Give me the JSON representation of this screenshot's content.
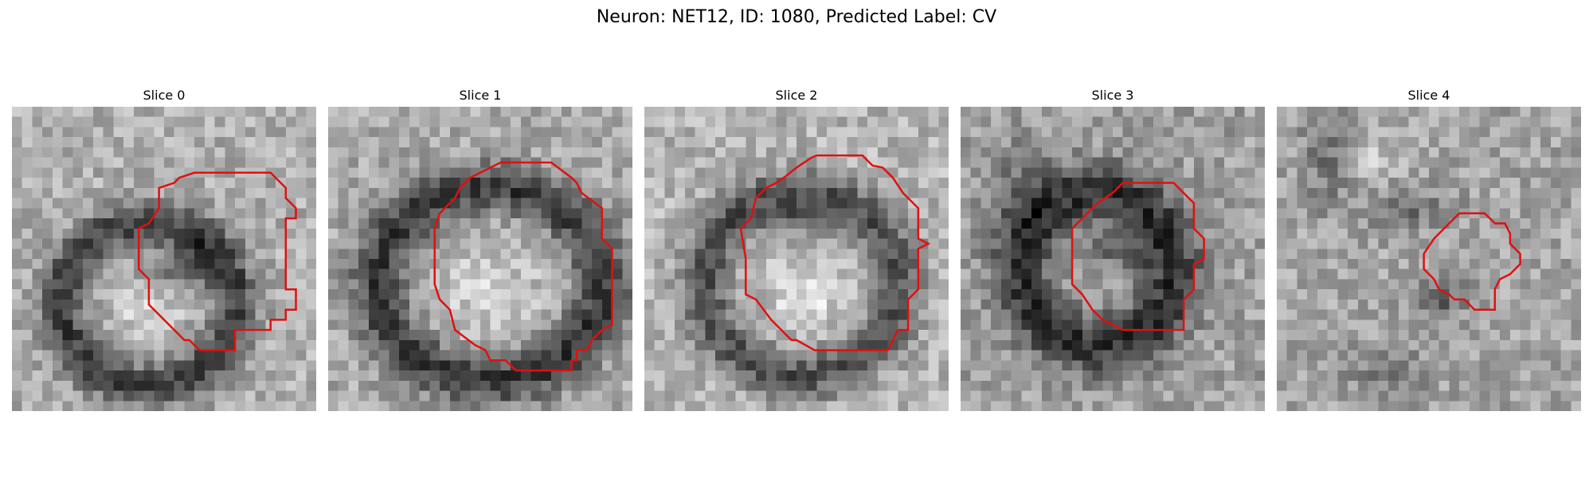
{
  "figure": {
    "title": "Neuron: NET12, ID: 1080, Predicted Label: CV"
  },
  "panels": [
    {
      "title": "Slice 0"
    },
    {
      "title": "Slice 1"
    },
    {
      "title": "Slice 2"
    },
    {
      "title": "Slice 3"
    },
    {
      "title": "Slice 4"
    }
  ],
  "colors": {
    "contour": "#e01010",
    "background": "#ffffff",
    "colormap": "gray"
  }
}
